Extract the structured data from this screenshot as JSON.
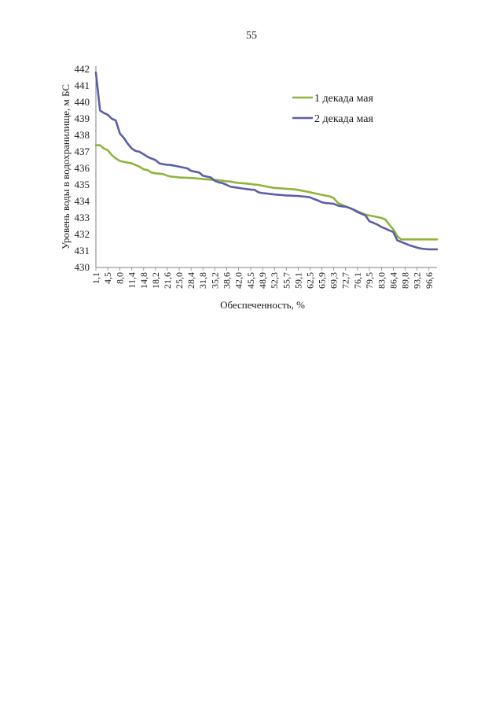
{
  "page": {
    "number": "55"
  },
  "chart_data": {
    "type": "line",
    "title": "",
    "xlabel": "Обеспеченность, %",
    "ylabel": "Уровень воды в водохранилище, м БС",
    "ylim": [
      430,
      442
    ],
    "yticks": [
      430,
      431,
      432,
      433,
      434,
      435,
      436,
      437,
      438,
      439,
      440,
      441,
      442
    ],
    "xlim": [
      1.1,
      98.9
    ],
    "xticks": [
      "1,1",
      "4,5",
      "8,0",
      "11,4",
      "14,8",
      "18,2",
      "21,6",
      "25,0",
      "28,4",
      "31,8",
      "35,2",
      "38,6",
      "42,0",
      "45,5",
      "48,9",
      "52,3",
      "55,7",
      "59,1",
      "62,5",
      "65,9",
      "69,3",
      "72,7",
      "76,1",
      "79,5",
      "83,0",
      "86,4",
      "89,8",
      "93,2",
      "96,6"
    ],
    "xtick_values": [
      1.1,
      4.5,
      8.0,
      11.4,
      14.8,
      18.2,
      21.6,
      25.0,
      28.4,
      31.8,
      35.2,
      38.6,
      42.0,
      45.5,
      48.9,
      52.3,
      55.7,
      59.1,
      62.5,
      65.9,
      69.3,
      72.7,
      76.1,
      79.5,
      83.0,
      86.4,
      89.8,
      93.2,
      96.6
    ],
    "grid": false,
    "legend_position": "top-right",
    "series": [
      {
        "name": "1 декада мая",
        "color": "#8db43c",
        "x": [
          1.1,
          2.3,
          3.4,
          4.5,
          5.7,
          6.8,
          8.0,
          9.1,
          10.2,
          11.4,
          12.5,
          13.6,
          14.8,
          15.9,
          17.0,
          18.2,
          19.3,
          20.5,
          21.6,
          22.7,
          23.9,
          25.0,
          26.1,
          27.3,
          28.4,
          29.5,
          30.7,
          31.8,
          33.0,
          34.1,
          35.2,
          36.4,
          37.5,
          38.6,
          39.8,
          40.9,
          42.0,
          43.2,
          44.3,
          45.5,
          46.6,
          47.7,
          48.9,
          50.0,
          51.1,
          52.3,
          53.4,
          54.5,
          55.7,
          56.8,
          58.0,
          59.1,
          60.2,
          61.4,
          62.5,
          63.6,
          64.8,
          65.9,
          67.0,
          68.2,
          69.3,
          70.5,
          71.6,
          72.7,
          73.9,
          75.0,
          76.1,
          77.3,
          78.4,
          79.5,
          80.7,
          81.8,
          83.0,
          84.1,
          85.2,
          86.4,
          87.5,
          88.6,
          89.8,
          90.9,
          92.0,
          93.2,
          94.3,
          95.5,
          96.6,
          97.7,
          98.9
        ],
        "y": [
          437.4,
          437.4,
          437.2,
          437.1,
          436.8,
          436.6,
          436.45,
          436.4,
          436.35,
          436.3,
          436.2,
          436.1,
          435.95,
          435.9,
          435.75,
          435.7,
          435.68,
          435.65,
          435.55,
          435.5,
          435.48,
          435.45,
          435.44,
          435.43,
          435.42,
          435.4,
          435.38,
          435.35,
          435.33,
          435.32,
          435.3,
          435.28,
          435.25,
          435.22,
          435.2,
          435.15,
          435.12,
          435.1,
          435.08,
          435.05,
          435.02,
          435.0,
          434.95,
          434.9,
          434.85,
          434.82,
          434.8,
          434.78,
          434.76,
          434.75,
          434.73,
          434.7,
          434.65,
          434.6,
          434.55,
          434.5,
          434.45,
          434.4,
          434.35,
          434.3,
          434.2,
          433.9,
          433.8,
          433.7,
          433.6,
          433.5,
          433.4,
          433.3,
          433.2,
          433.15,
          433.1,
          433.05,
          433.0,
          432.9,
          432.6,
          432.3,
          431.9,
          431.7,
          431.7,
          431.7,
          431.7,
          431.7,
          431.7,
          431.7,
          431.7,
          431.7,
          431.7
        ]
      },
      {
        "name": "2 декада мая",
        "color": "#5b5ea8",
        "x": [
          1.1,
          2.3,
          3.4,
          4.5,
          5.7,
          6.8,
          8.0,
          9.1,
          10.2,
          11.4,
          12.5,
          13.6,
          14.8,
          15.9,
          17.0,
          18.2,
          19.3,
          20.5,
          21.6,
          22.7,
          23.9,
          25.0,
          26.1,
          27.3,
          28.4,
          29.5,
          30.7,
          31.8,
          33.0,
          34.1,
          35.2,
          36.4,
          37.5,
          38.6,
          39.8,
          40.9,
          42.0,
          43.2,
          44.3,
          45.5,
          46.6,
          47.7,
          48.9,
          50.0,
          51.1,
          52.3,
          53.4,
          54.5,
          55.7,
          56.8,
          58.0,
          59.1,
          60.2,
          61.4,
          62.5,
          63.6,
          64.8,
          65.9,
          67.0,
          68.2,
          69.3,
          70.5,
          71.6,
          72.7,
          73.9,
          75.0,
          76.1,
          77.3,
          78.4,
          79.5,
          80.7,
          81.8,
          83.0,
          84.1,
          85.2,
          86.4,
          87.5,
          88.6,
          89.8,
          90.9,
          92.0,
          93.2,
          94.3,
          95.5,
          96.6,
          97.7,
          98.9
        ],
        "y": [
          441.8,
          439.5,
          439.35,
          439.25,
          439.0,
          438.9,
          438.1,
          437.85,
          437.5,
          437.2,
          437.05,
          437.0,
          436.85,
          436.7,
          436.6,
          436.5,
          436.3,
          436.25,
          436.22,
          436.2,
          436.15,
          436.1,
          436.05,
          436.0,
          435.85,
          435.8,
          435.75,
          435.55,
          435.5,
          435.45,
          435.25,
          435.15,
          435.1,
          435.0,
          434.88,
          434.85,
          434.82,
          434.78,
          434.75,
          434.72,
          434.7,
          434.55,
          434.5,
          434.48,
          434.45,
          434.42,
          434.4,
          434.38,
          434.36,
          434.35,
          434.34,
          434.33,
          434.3,
          434.28,
          434.25,
          434.15,
          434.05,
          433.95,
          433.9,
          433.88,
          433.85,
          433.75,
          433.7,
          433.68,
          433.6,
          433.5,
          433.35,
          433.25,
          433.15,
          432.8,
          432.7,
          432.6,
          432.45,
          432.35,
          432.25,
          432.15,
          431.65,
          431.55,
          431.45,
          431.35,
          431.28,
          431.2,
          431.15,
          431.12,
          431.1,
          431.1,
          431.1
        ]
      }
    ]
  }
}
